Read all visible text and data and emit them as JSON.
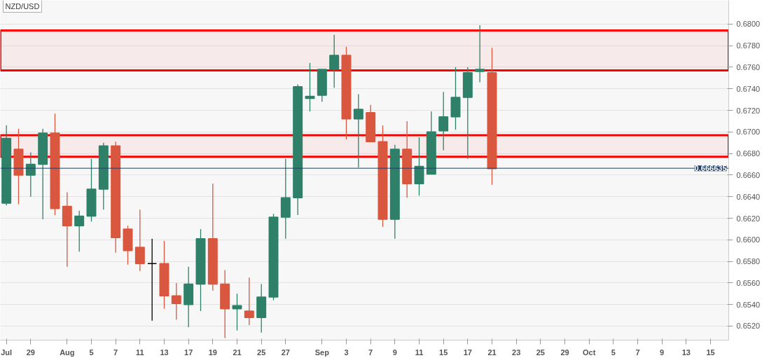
{
  "chart_data": {
    "type": "candlestick",
    "title": "NZD/USD",
    "categories": [
      "Jul",
      null,
      "29",
      null,
      null,
      "Aug",
      null,
      "5",
      null,
      "7",
      null,
      "11",
      null,
      "13",
      null,
      "17",
      null,
      "19",
      null,
      "21",
      null,
      "25",
      null,
      "27",
      null,
      null,
      "Sep",
      null,
      "3",
      null,
      "7",
      null,
      "9",
      null,
      "11",
      null,
      "15",
      null,
      "17",
      null,
      "21",
      null,
      "23",
      null,
      "25",
      null,
      "29",
      null,
      "Oct",
      null,
      "5",
      null,
      "7",
      null,
      "9",
      null,
      "13",
      null,
      "15",
      null
    ],
    "ohlc": [
      [
        0.6634,
        0.6706,
        0.6632,
        0.6694
      ],
      [
        0.6684,
        0.6703,
        0.6633,
        0.666
      ],
      [
        0.666,
        0.6681,
        0.664,
        0.667
      ],
      [
        0.667,
        0.6703,
        0.6619,
        0.6699
      ],
      [
        0.6699,
        0.6717,
        0.6623,
        0.6629
      ],
      [
        0.6631,
        0.6644,
        0.6575,
        0.6613
      ],
      [
        0.6613,
        0.6627,
        0.6589,
        0.6622
      ],
      [
        0.6622,
        0.6675,
        0.6617,
        0.6647
      ],
      [
        0.6647,
        0.669,
        0.6628,
        0.6687
      ],
      [
        0.6687,
        0.6691,
        0.6588,
        0.6602
      ],
      [
        0.661,
        0.6613,
        0.6577,
        0.659
      ],
      [
        0.6593,
        0.6628,
        0.6571,
        0.6578
      ],
      [
        0.6578,
        0.6601,
        0.6525,
        0.6578
      ],
      [
        0.6578,
        0.6599,
        0.6536,
        0.6548
      ],
      [
        0.6548,
        0.656,
        0.6526,
        0.6541
      ],
      [
        0.654,
        0.6575,
        0.6519,
        0.6559
      ],
      [
        0.6559,
        0.661,
        0.6534,
        0.6601
      ],
      [
        0.6601,
        0.6652,
        0.6553,
        0.6559
      ],
      [
        0.6559,
        0.6572,
        0.6509,
        0.6536
      ],
      [
        0.6536,
        0.655,
        0.6516,
        0.6539
      ],
      [
        0.6534,
        0.6565,
        0.6521,
        0.6528
      ],
      [
        0.6528,
        0.6559,
        0.6514,
        0.6547
      ],
      [
        0.6547,
        0.6624,
        0.6544,
        0.6621
      ],
      [
        0.6621,
        0.6675,
        0.6601,
        0.6639
      ],
      [
        0.6639,
        0.6744,
        0.6623,
        0.6742
      ],
      [
        0.6731,
        0.6764,
        0.6719,
        0.6733
      ],
      [
        0.6734,
        0.6758,
        0.6728,
        0.6758
      ],
      [
        0.6758,
        0.679,
        0.6741,
        0.6771
      ],
      [
        0.6771,
        0.6779,
        0.6693,
        0.6712
      ],
      [
        0.6712,
        0.6735,
        0.6667,
        0.6721
      ],
      [
        0.6718,
        0.6725,
        0.6691,
        0.6691
      ],
      [
        0.6691,
        0.6706,
        0.6612,
        0.6619
      ],
      [
        0.6619,
        0.6688,
        0.6601,
        0.6684
      ],
      [
        0.6684,
        0.671,
        0.6639,
        0.6652
      ],
      [
        0.6652,
        0.6695,
        0.6641,
        0.6668
      ],
      [
        0.6661,
        0.6719,
        0.6661,
        0.67
      ],
      [
        0.6701,
        0.6737,
        0.6683,
        0.6714
      ],
      [
        0.6714,
        0.676,
        0.6702,
        0.6732
      ],
      [
        0.6732,
        0.676,
        0.6675,
        0.6755
      ],
      [
        0.6756,
        0.6799,
        0.6746,
        0.6758
      ],
      [
        0.6755,
        0.6778,
        0.6651,
        0.6666
      ],
      null,
      null,
      null,
      null,
      null,
      null,
      null,
      null,
      null,
      null,
      null,
      null,
      null,
      null,
      null,
      null,
      null,
      null,
      null
    ],
    "colors": [
      "#2e8068",
      "#d9573f",
      "#2e8068",
      "#2e8068",
      "#d9573f",
      "#d9573f",
      "#2e8068",
      "#2e8068",
      "#2e8068",
      "#d9573f",
      "#d9573f",
      "#d9573f",
      "#000000",
      "#d9573f",
      "#d9573f",
      "#2e8068",
      "#2e8068",
      "#d9573f",
      "#d9573f",
      "#2e8068",
      "#d9573f",
      "#2e8068",
      "#2e8068",
      "#2e8068",
      "#2e8068",
      "#2e8068",
      "#2e8068",
      "#2e8068",
      "#d9573f",
      "#2e8068",
      "#d9573f",
      "#d9573f",
      "#2e8068",
      "#d9573f",
      "#2e8068",
      "#2e8068",
      "#2e8068",
      "#2e8068",
      "#2e8068",
      "#2e8068",
      "#d9573f",
      null,
      null,
      null,
      null,
      null,
      null,
      null,
      null,
      null,
      null,
      null,
      null,
      null,
      null,
      null,
      null,
      null,
      null,
      null
    ],
    "ylim": [
      0.6507,
      0.6822
    ],
    "yticks": [
      {
        "value": 0.652,
        "label": "0.6520"
      },
      {
        "value": 0.654,
        "label": "0.6540"
      },
      {
        "value": 0.656,
        "label": "0.6560"
      },
      {
        "value": 0.658,
        "label": "0.6580"
      },
      {
        "value": 0.66,
        "label": "0.6600"
      },
      {
        "value": 0.662,
        "label": "0.6620"
      },
      {
        "value": 0.664,
        "label": "0.6640"
      },
      {
        "value": 0.666,
        "label": "0.6660"
      },
      {
        "value": 0.668,
        "label": "0.6680"
      },
      {
        "value": 0.67,
        "label": "0.6700"
      },
      {
        "value": 0.672,
        "label": "0.6720"
      },
      {
        "value": 0.674,
        "label": "0.6740"
      },
      {
        "value": 0.676,
        "label": "0.6760"
      },
      {
        "value": 0.678,
        "label": "0.6780"
      },
      {
        "value": 0.68,
        "label": "0.6800"
      }
    ],
    "grid": "y",
    "ref_lines": [
      {
        "axis": "y",
        "value": 0.666635,
        "label": "0.666635",
        "color": "#1f3f66"
      }
    ],
    "bands": [
      {
        "axis": "y",
        "from": 0.6757,
        "to": 0.6794,
        "color": "#ff0000"
      },
      {
        "axis": "y",
        "from": 0.6677,
        "to": 0.6697,
        "color": "#ff0000"
      }
    ]
  }
}
